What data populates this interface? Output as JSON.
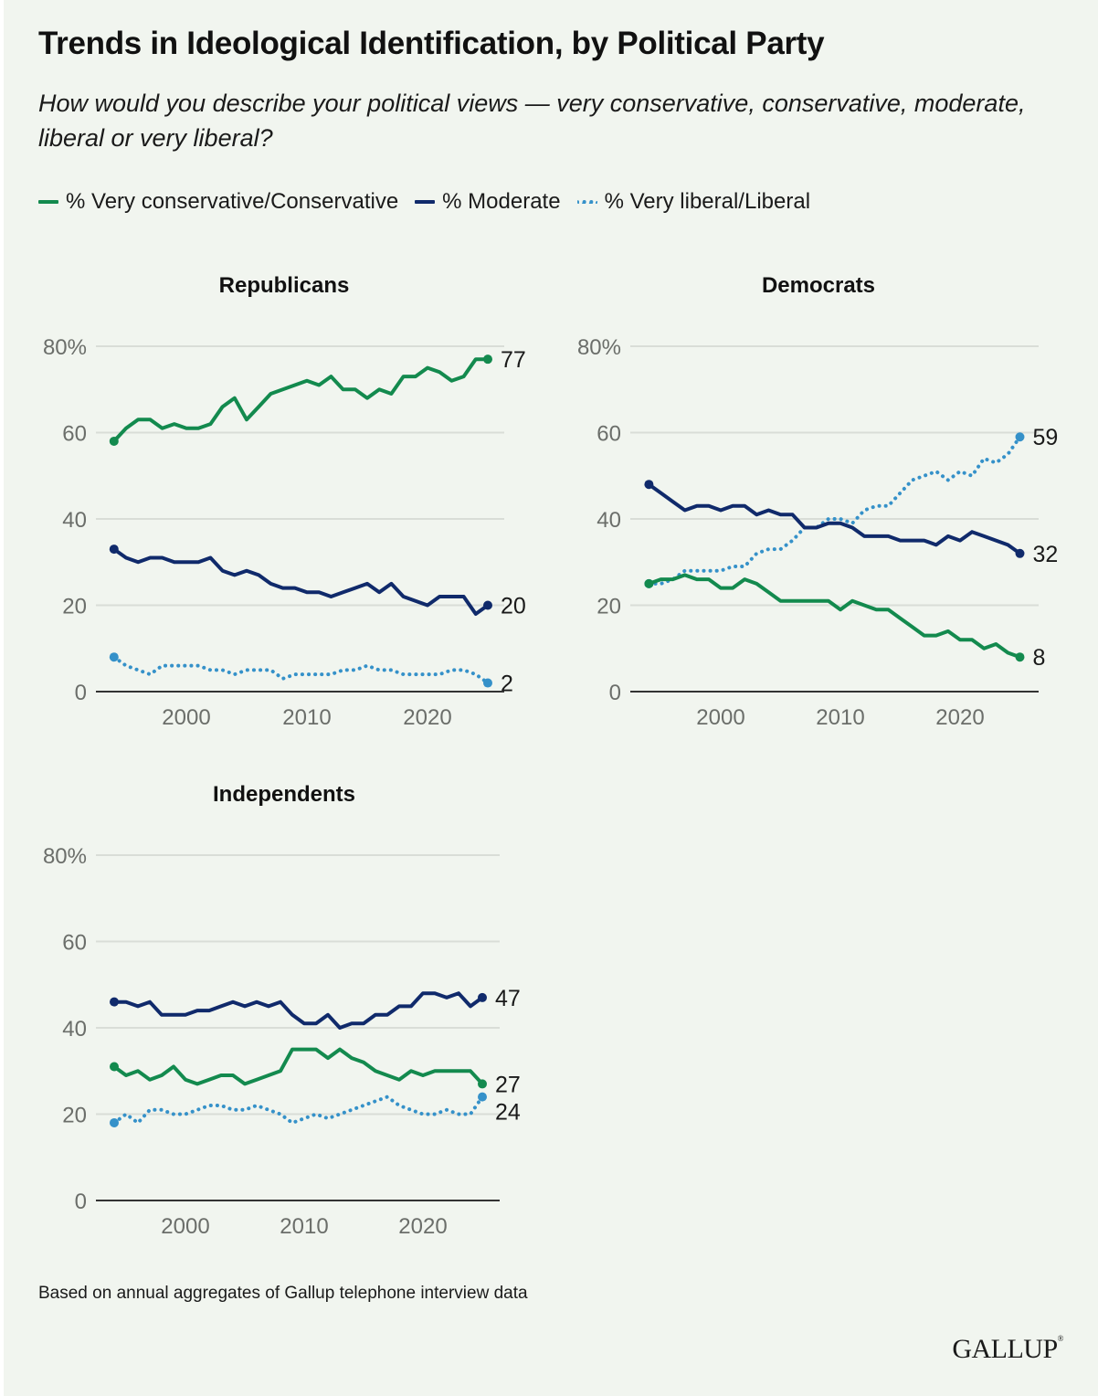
{
  "title": "Trends in Ideological Identification, by Political Party",
  "subtitle": "How would you describe your political views — very conservative, conservative, moderate, liberal or very liberal?",
  "legend": [
    {
      "key": "conservative",
      "label": "% Very conservative/Conservative",
      "color": "#138a4e",
      "style": "solid"
    },
    {
      "key": "moderate",
      "label": "% Moderate",
      "color": "#102a6b",
      "style": "solid"
    },
    {
      "key": "liberal",
      "label": "% Very liberal/Liberal",
      "color": "#3591c9",
      "style": "dotted"
    }
  ],
  "footnote": "Based on annual aggregates of Gallup telephone interview data",
  "logo": "GALLUP",
  "chart_data": [
    {
      "type": "line",
      "title": "Republicans",
      "xlabel": "",
      "ylabel": "",
      "x": [
        1994,
        1995,
        1996,
        1997,
        1998,
        1999,
        2000,
        2001,
        2002,
        2003,
        2004,
        2005,
        2006,
        2007,
        2008,
        2009,
        2010,
        2011,
        2012,
        2013,
        2014,
        2015,
        2016,
        2017,
        2018,
        2019,
        2020,
        2021,
        2022,
        2023,
        2024,
        2025
      ],
      "xticks": [
        "2000",
        "2010",
        "2020"
      ],
      "ylim": [
        0,
        80
      ],
      "yticks": [
        "0",
        "20",
        "40",
        "60",
        "80%"
      ],
      "grid": true,
      "series": [
        {
          "name": "% Very conservative/Conservative",
          "key": "conservative",
          "end_label": "77",
          "values": [
            58,
            61,
            63,
            63,
            61,
            62,
            61,
            61,
            62,
            66,
            68,
            63,
            66,
            69,
            70,
            71,
            72,
            71,
            73,
            70,
            70,
            68,
            70,
            69,
            73,
            73,
            75,
            74,
            72,
            73,
            77,
            77
          ]
        },
        {
          "name": "% Moderate",
          "key": "moderate",
          "end_label": "20",
          "values": [
            33,
            31,
            30,
            31,
            31,
            30,
            30,
            30,
            31,
            28,
            27,
            28,
            27,
            25,
            24,
            24,
            23,
            23,
            22,
            23,
            24,
            25,
            23,
            25,
            22,
            21,
            20,
            22,
            22,
            22,
            18,
            20
          ]
        },
        {
          "name": "% Very liberal/Liberal",
          "key": "liberal",
          "end_label": "2",
          "values": [
            8,
            6,
            5,
            4,
            6,
            6,
            6,
            6,
            5,
            5,
            4,
            5,
            5,
            5,
            3,
            4,
            4,
            4,
            4,
            5,
            5,
            6,
            5,
            5,
            4,
            4,
            4,
            4,
            5,
            5,
            4,
            2
          ]
        }
      ]
    },
    {
      "type": "line",
      "title": "Democrats",
      "xlabel": "",
      "ylabel": "",
      "x": [
        1994,
        1995,
        1996,
        1997,
        1998,
        1999,
        2000,
        2001,
        2002,
        2003,
        2004,
        2005,
        2006,
        2007,
        2008,
        2009,
        2010,
        2011,
        2012,
        2013,
        2014,
        2015,
        2016,
        2017,
        2018,
        2019,
        2020,
        2021,
        2022,
        2023,
        2024,
        2025
      ],
      "xticks": [
        "2000",
        "2010",
        "2020"
      ],
      "ylim": [
        0,
        80
      ],
      "yticks": [
        "0",
        "20",
        "40",
        "60",
        "80%"
      ],
      "grid": true,
      "series": [
        {
          "name": "% Very conservative/Conservative",
          "key": "conservative",
          "end_label": "8",
          "values": [
            25,
            26,
            26,
            27,
            26,
            26,
            24,
            24,
            26,
            25,
            23,
            21,
            21,
            21,
            21,
            21,
            19,
            21,
            20,
            19,
            19,
            17,
            15,
            13,
            13,
            14,
            12,
            12,
            10,
            11,
            9,
            8
          ]
        },
        {
          "name": "% Moderate",
          "key": "moderate",
          "end_label": "32",
          "values": [
            48,
            46,
            44,
            42,
            43,
            43,
            42,
            43,
            43,
            41,
            42,
            41,
            41,
            38,
            38,
            39,
            39,
            38,
            36,
            36,
            36,
            35,
            35,
            35,
            34,
            36,
            35,
            37,
            36,
            35,
            34,
            32
          ]
        },
        {
          "name": "% Very liberal/Liberal",
          "key": "liberal",
          "end_label": "59",
          "values": [
            25,
            25,
            26,
            28,
            28,
            28,
            28,
            29,
            29,
            32,
            33,
            33,
            35,
            38,
            38,
            40,
            40,
            39,
            42,
            43,
            43,
            46,
            49,
            50,
            51,
            49,
            51,
            50,
            54,
            53,
            55,
            59
          ]
        }
      ]
    },
    {
      "type": "line",
      "title": "Independents",
      "xlabel": "",
      "ylabel": "",
      "x": [
        1994,
        1995,
        1996,
        1997,
        1998,
        1999,
        2000,
        2001,
        2002,
        2003,
        2004,
        2005,
        2006,
        2007,
        2008,
        2009,
        2010,
        2011,
        2012,
        2013,
        2014,
        2015,
        2016,
        2017,
        2018,
        2019,
        2020,
        2021,
        2022,
        2023,
        2024,
        2025
      ],
      "xticks": [
        "2000",
        "2010",
        "2020"
      ],
      "ylim": [
        0,
        80
      ],
      "yticks": [
        "0",
        "20",
        "40",
        "60",
        "80%"
      ],
      "grid": true,
      "series": [
        {
          "name": "% Very conservative/Conservative",
          "key": "conservative",
          "end_label": "27",
          "values": [
            31,
            29,
            30,
            28,
            29,
            31,
            28,
            27,
            28,
            29,
            29,
            27,
            28,
            29,
            30,
            35,
            35,
            35,
            33,
            35,
            33,
            32,
            30,
            29,
            28,
            30,
            29,
            30,
            30,
            30,
            30,
            27
          ]
        },
        {
          "name": "% Moderate",
          "key": "moderate",
          "end_label": "47",
          "values": [
            46,
            46,
            45,
            46,
            43,
            43,
            43,
            44,
            44,
            45,
            46,
            45,
            46,
            45,
            46,
            43,
            41,
            41,
            43,
            40,
            41,
            41,
            43,
            43,
            45,
            45,
            48,
            48,
            47,
            48,
            45,
            47
          ]
        },
        {
          "name": "% Very liberal/Liberal",
          "key": "liberal",
          "end_label": "24",
          "values": [
            18,
            20,
            18,
            21,
            21,
            20,
            20,
            21,
            22,
            22,
            21,
            21,
            22,
            21,
            20,
            18,
            19,
            20,
            19,
            20,
            21,
            22,
            23,
            24,
            22,
            21,
            20,
            20,
            21,
            20,
            20,
            24
          ]
        }
      ]
    }
  ]
}
